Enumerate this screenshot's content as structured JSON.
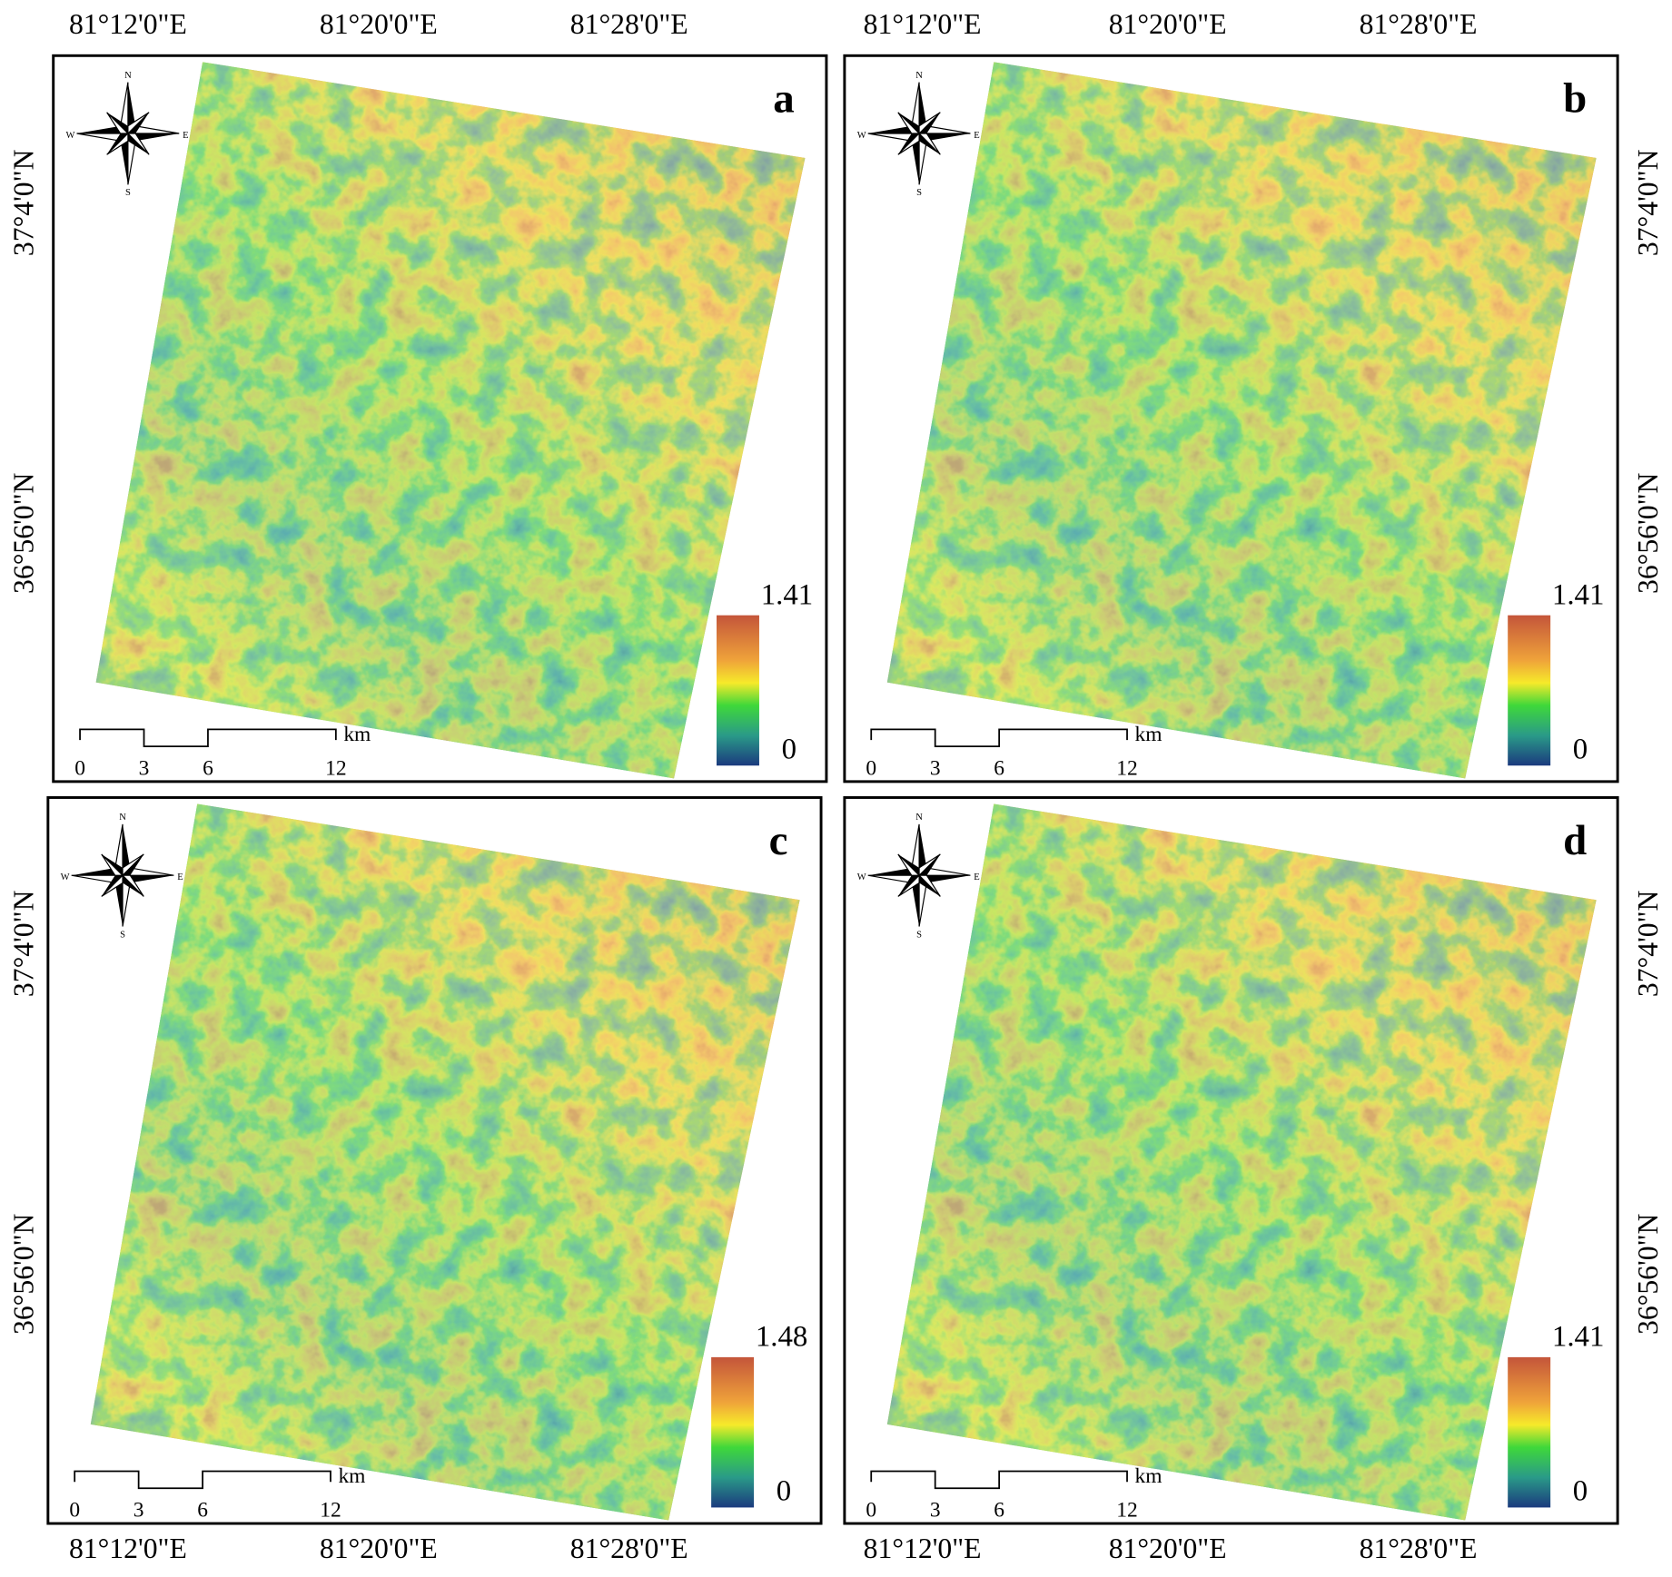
{
  "longitudes": [
    "81°12'0\"E",
    "81°20'0\"E",
    "81°28'0\"E"
  ],
  "latitudes": [
    "37°4'0\"N",
    "36°56'0\"N"
  ],
  "compass": {
    "n": "N",
    "s": "S",
    "e": "E",
    "w": "W"
  },
  "scale_bar": {
    "ticks": [
      0,
      3,
      6,
      12
    ],
    "unit": "km"
  },
  "panels": [
    {
      "label": "a",
      "max": 1.41,
      "min": 0
    },
    {
      "label": "b",
      "max": 1.41,
      "min": 0
    },
    {
      "label": "c",
      "max": 1.48,
      "min": 0
    },
    {
      "label": "d",
      "max": 1.41,
      "min": 0
    }
  ]
}
